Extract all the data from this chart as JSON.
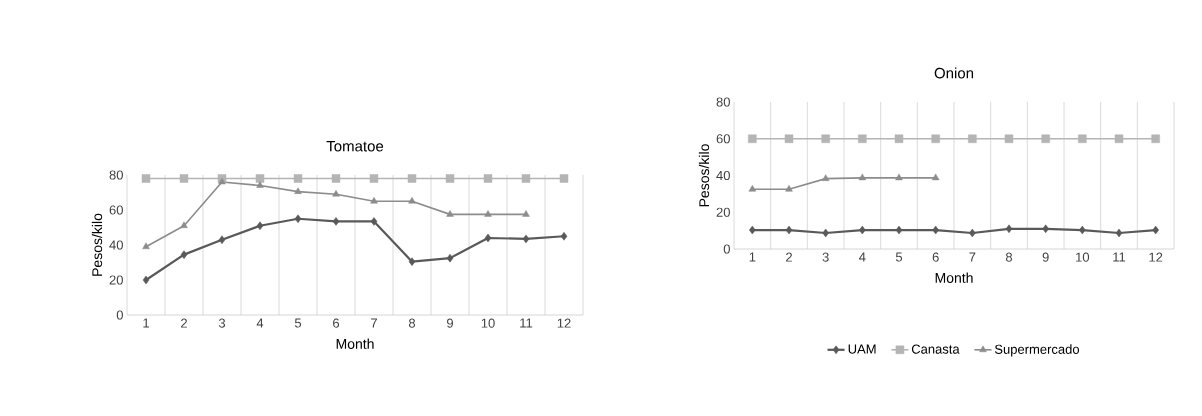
{
  "chart_data": [
    {
      "type": "line",
      "title": "Tomatoe",
      "xlabel": "Month",
      "ylabel": "Pesos/kilo",
      "categories": [
        "1",
        "2",
        "3",
        "4",
        "5",
        "6",
        "7",
        "8",
        "9",
        "10",
        "11",
        "12"
      ],
      "ylim": [
        0,
        80
      ],
      "yticks": [
        0,
        20,
        40,
        60,
        80
      ],
      "grid": "x",
      "series": [
        {
          "color": "#595959",
          "marker": "diamond",
          "values": [
            20,
            34.5,
            43,
            51,
            55,
            53.5,
            53.5,
            30.5,
            32.5,
            44,
            43.5,
            45
          ]
        },
        {
          "color": "#b4b4b4",
          "marker": "square",
          "values": [
            78,
            78,
            78,
            78,
            78,
            78,
            78,
            78,
            78,
            78,
            78,
            78
          ]
        },
        {
          "color": "#8c8c8c",
          "marker": "triangle",
          "values": [
            39,
            51,
            76,
            74,
            70.5,
            69,
            65,
            65,
            57.5,
            57.5,
            57.5,
            null
          ]
        }
      ]
    },
    {
      "type": "line",
      "title": "Onion",
      "xlabel": "Month",
      "ylabel": "Pesos/kilo",
      "categories": [
        "1",
        "2",
        "3",
        "4",
        "5",
        "6",
        "7",
        "8",
        "9",
        "10",
        "11",
        "12"
      ],
      "ylim": [
        0,
        80
      ],
      "yticks": [
        0,
        20,
        40,
        60,
        80
      ],
      "grid": "x",
      "legend": "bottom",
      "series": [
        {
          "name": "UAM",
          "color": "#595959",
          "marker": "diamond",
          "values": [
            10.3,
            10.3,
            8.7,
            10.3,
            10.3,
            10.3,
            8.7,
            11,
            11,
            10.3,
            8.7,
            10.3
          ]
        },
        {
          "name": "Canasta",
          "color": "#b4b4b4",
          "marker": "square",
          "values": [
            60,
            60,
            60,
            60,
            60,
            60,
            60,
            60,
            60,
            60,
            60,
            60
          ]
        },
        {
          "name": "Supermercado",
          "color": "#8c8c8c",
          "marker": "triangle",
          "values": [
            32.5,
            32.5,
            38.3,
            38.7,
            38.7,
            38.7,
            null,
            null,
            null,
            null,
            null,
            null
          ]
        }
      ]
    }
  ]
}
